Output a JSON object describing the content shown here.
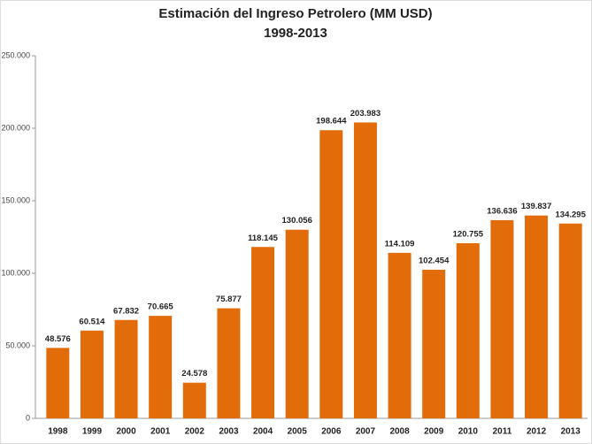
{
  "chart_data": {
    "type": "bar",
    "title": "Estimación del Ingreso Petrolero (MM USD)",
    "subtitle": "1998-2013",
    "categories": [
      "1998",
      "1999",
      "2000",
      "2001",
      "2002",
      "2003",
      "2004",
      "2005",
      "2006",
      "2007",
      "2008",
      "2009",
      "2010",
      "2011",
      "2012",
      "2013"
    ],
    "values": [
      48576,
      60514,
      67832,
      70665,
      24578,
      75877,
      118145,
      130056,
      198644,
      203983,
      114109,
      102454,
      120755,
      136636,
      139837,
      134295
    ],
    "value_labels": [
      "48.576",
      "60.514",
      "67.832",
      "70.665",
      "24.578",
      "75.877",
      "118.145",
      "130.056",
      "198.644",
      "203.983",
      "114.109",
      "102.454",
      "120.755",
      "136.636",
      "139.837",
      "134.295"
    ],
    "color": "#e36c0a",
    "ylim": [
      0,
      250000
    ],
    "yticks": [
      0,
      {
        "value": 50000,
        "label": "50.000"
      },
      {
        "value": 100000,
        "label": "100.000"
      },
      {
        "value": 150000,
        "label": "150.000"
      },
      {
        "value": 200000,
        "label": "200.000"
      },
      {
        "value": 250000,
        "label": "250.000"
      }
    ],
    "grid": false
  }
}
